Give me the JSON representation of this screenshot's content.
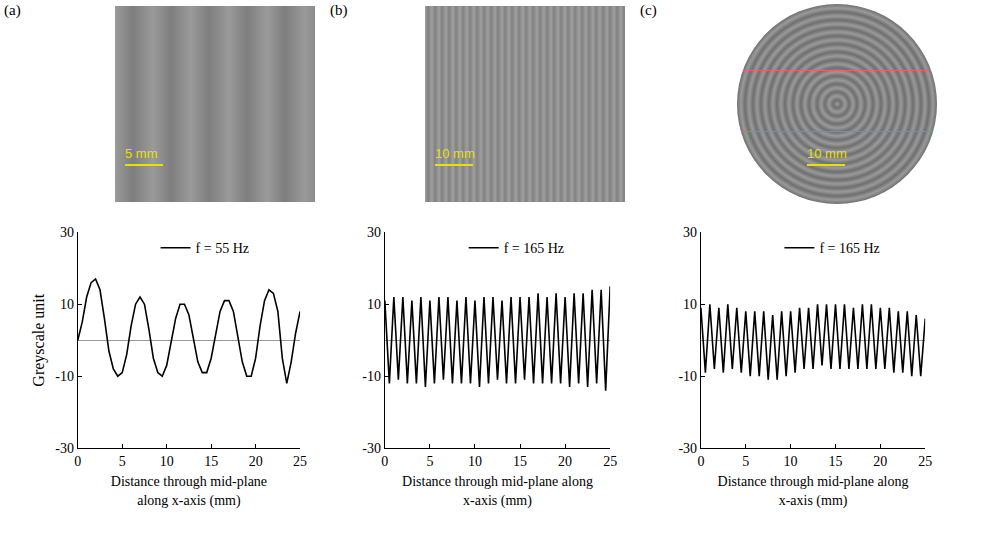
{
  "images": [
    {
      "label": "(a)",
      "scale_bar": "5 mm"
    },
    {
      "label": "(b)",
      "scale_bar": "10 mm"
    },
    {
      "label": "(c)",
      "scale_bar": "10 mm"
    }
  ],
  "chart_data": [
    {
      "type": "line",
      "x_label": "Distance through mid-plane along x-axis (mm)",
      "y_label": "Greyscale unit",
      "xlim": [
        0,
        25
      ],
      "xticks": [
        0,
        5,
        10,
        15,
        20,
        25
      ],
      "ylim": [
        -30,
        30
      ],
      "yticks": [
        -30,
        -10,
        10,
        30
      ],
      "grid": false,
      "legend": "top",
      "x": [
        0,
        0.5,
        1,
        1.5,
        2,
        2.5,
        3,
        3.5,
        4,
        4.5,
        5,
        5.5,
        6,
        6.5,
        7,
        7.5,
        8,
        8.5,
        9,
        9.5,
        10,
        10.5,
        11,
        11.5,
        12,
        12.5,
        13,
        13.5,
        14,
        14.5,
        15,
        15.5,
        16,
        16.5,
        17,
        17.5,
        18,
        18.5,
        19,
        19.5,
        20,
        20.5,
        21,
        21.5,
        22,
        22.5,
        23,
        23.5,
        24,
        24.5,
        25
      ],
      "series": [
        {
          "name": "f = 55 Hz",
          "color": "#000000",
          "values": [
            0,
            5,
            12,
            16,
            17,
            14,
            6,
            -3,
            -8,
            -10,
            -9,
            -4,
            4,
            10,
            12,
            10,
            3,
            -5,
            -9,
            -10,
            -7,
            -1,
            6,
            10,
            10,
            7,
            0,
            -6,
            -9,
            -9,
            -5,
            2,
            8,
            11,
            11,
            8,
            1,
            -6,
            -10,
            -10,
            -5,
            4,
            11,
            14,
            13,
            8,
            -5,
            -12,
            -6,
            2,
            8
          ]
        }
      ]
    },
    {
      "type": "line",
      "x_label": "Distance through mid-plane along x-axis (mm)",
      "xlim": [
        0,
        25
      ],
      "xticks": [
        0,
        5,
        10,
        15,
        20,
        25
      ],
      "ylim": [
        -30,
        30
      ],
      "yticks": [
        -30,
        -10,
        10,
        30
      ],
      "grid": false,
      "legend": "top",
      "x": [
        0,
        0.5,
        1,
        1.5,
        2,
        2.5,
        3,
        3.5,
        4,
        4.5,
        5,
        5.5,
        6,
        6.5,
        7,
        7.5,
        8,
        8.5,
        9,
        9.5,
        10,
        10.5,
        11,
        11.5,
        12,
        12.5,
        13,
        13.5,
        14,
        14.5,
        15,
        15.5,
        16,
        16.5,
        17,
        17.5,
        18,
        18.5,
        19,
        19.5,
        20,
        20.5,
        21,
        21.5,
        22,
        22.5,
        23,
        23.5,
        24,
        24.5,
        25
      ],
      "series": [
        {
          "name": "f = 165 Hz",
          "color": "#000000",
          "values": [
            11,
            -12,
            12,
            -11,
            12,
            -12,
            11,
            -12,
            12,
            -13,
            11,
            -12,
            12,
            -11,
            12,
            -12,
            11,
            -12,
            12,
            -12,
            11,
            -13,
            12,
            -12,
            12,
            -11,
            11,
            -12,
            12,
            -12,
            12,
            -11,
            12,
            -12,
            13,
            -12,
            12,
            -12,
            13,
            -12,
            12,
            -13,
            13,
            -12,
            13,
            -13,
            14,
            -12,
            14,
            -14,
            15
          ]
        }
      ]
    },
    {
      "type": "line",
      "x_label": "Distance through mid-plane along x-axis (mm)",
      "xlim": [
        0,
        25
      ],
      "xticks": [
        0,
        5,
        10,
        15,
        20,
        25
      ],
      "ylim": [
        -30,
        30
      ],
      "yticks": [
        -30,
        -10,
        10,
        30
      ],
      "grid": false,
      "legend": "top",
      "x": [
        0,
        0.5,
        1,
        1.5,
        2,
        2.5,
        3,
        3.5,
        4,
        4.5,
        5,
        5.5,
        6,
        6.5,
        7,
        7.5,
        8,
        8.5,
        9,
        9.5,
        10,
        10.5,
        11,
        11.5,
        12,
        12.5,
        13,
        13.5,
        14,
        14.5,
        15,
        15.5,
        16,
        16.5,
        17,
        17.5,
        18,
        18.5,
        19,
        19.5,
        20,
        20.5,
        21,
        21.5,
        22,
        22.5,
        23,
        23.5,
        24,
        24.5,
        25
      ],
      "series": [
        {
          "name": "f = 165 Hz",
          "color": "#000000",
          "values": [
            9,
            -9,
            10,
            -8,
            9,
            -9,
            10,
            -8,
            9,
            -9,
            8,
            -10,
            8,
            -10,
            8,
            -11,
            7,
            -11,
            8,
            -10,
            8,
            -9,
            9,
            -8,
            9,
            -8,
            10,
            -7,
            10,
            -8,
            10,
            -8,
            10,
            -8,
            9,
            -8,
            10,
            -8,
            10,
            -8,
            9,
            -8,
            9,
            -9,
            8,
            -9,
            8,
            -10,
            7,
            -10,
            6
          ]
        }
      ]
    }
  ]
}
